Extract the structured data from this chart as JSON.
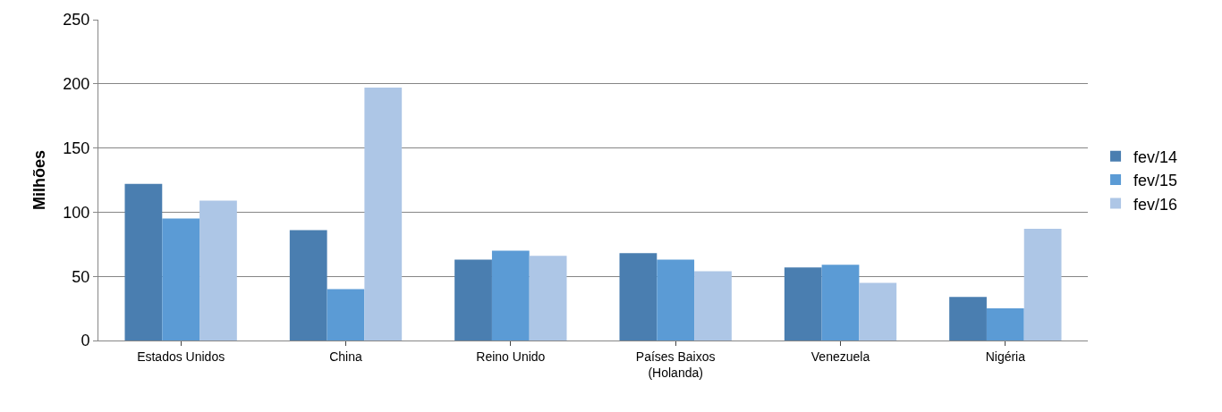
{
  "chart_data": {
    "type": "bar",
    "ylabel": "Milhões",
    "categories": [
      "Estados Unidos",
      "China",
      "Reino Unido",
      "Países Baixos\n(Holanda)",
      "Venezuela",
      "Nigéria"
    ],
    "series": [
      {
        "name": "fev/14",
        "color": "#4a7eb0",
        "values": [
          122,
          86,
          63,
          68,
          57,
          34
        ]
      },
      {
        "name": "fev/15",
        "color": "#5b9bd5",
        "values": [
          95,
          40,
          70,
          63,
          59,
          25
        ]
      },
      {
        "name": "fev/16",
        "color": "#adc6e6",
        "values": [
          109,
          197,
          66,
          54,
          45,
          87
        ]
      }
    ],
    "ylim": [
      0,
      250
    ],
    "yticks": [
      0,
      50,
      100,
      150,
      200,
      250
    ],
    "grid": "y",
    "legend": "right"
  }
}
